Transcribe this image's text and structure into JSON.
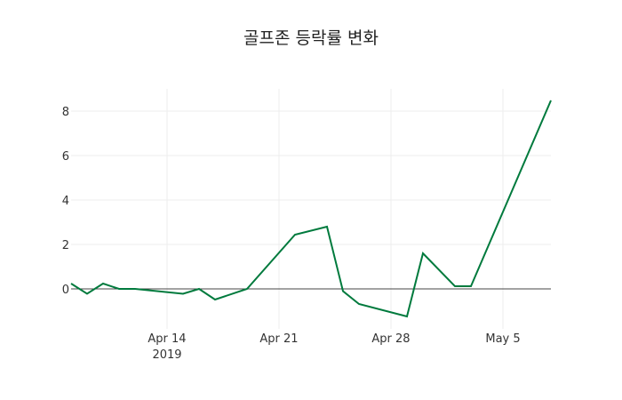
{
  "chart_data": {
    "type": "line",
    "title": "골프존 등락률 변화",
    "xlabel": "",
    "ylabel": "",
    "ylim": [
      -1.8,
      9
    ],
    "grid": true,
    "legend": "none",
    "line_color": "#007a3d",
    "x": [
      "2019-04-08",
      "2019-04-09",
      "2019-04-10",
      "2019-04-11",
      "2019-04-12",
      "2019-04-15",
      "2019-04-16",
      "2019-04-17",
      "2019-04-19",
      "2019-04-22",
      "2019-04-24",
      "2019-04-25",
      "2019-04-26",
      "2019-04-29",
      "2019-04-30",
      "2019-05-02",
      "2019-05-03",
      "2019-05-08"
    ],
    "series": [
      {
        "name": "등락률",
        "values": [
          0.24,
          -0.22,
          0.24,
          0.0,
          0.0,
          -0.22,
          0.0,
          -0.48,
          0.0,
          2.44,
          2.8,
          -0.1,
          -0.68,
          -1.24,
          1.6,
          0.12,
          0.12,
          8.48
        ]
      }
    ],
    "x_ticks": [
      {
        "label": "Apr 14",
        "sublabel": "2019",
        "date": "2019-04-14"
      },
      {
        "label": "Apr 21",
        "sublabel": "",
        "date": "2019-04-21"
      },
      {
        "label": "Apr 28",
        "sublabel": "",
        "date": "2019-04-28"
      },
      {
        "label": "May 5",
        "sublabel": "",
        "date": "2019-05-05"
      }
    ],
    "y_ticks": [
      0,
      2,
      4,
      6,
      8
    ]
  }
}
